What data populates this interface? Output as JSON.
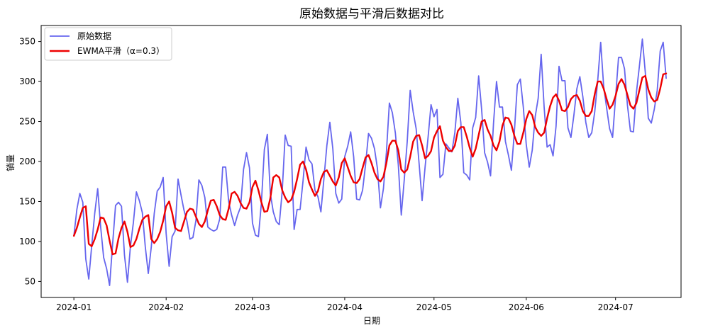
{
  "chart_data": {
    "type": "line",
    "title": "原始数据与平滑后数据对比",
    "xlabel": "日期",
    "ylabel": "销量",
    "xlim": [
      "2023-12-21",
      "2024-07-23"
    ],
    "ylim": [
      30,
      370
    ],
    "xticks": [
      "2024-01",
      "2024-02",
      "2024-03",
      "2024-04",
      "2024-05",
      "2024-06",
      "2024-07"
    ],
    "yticks": [
      50,
      100,
      150,
      200,
      250,
      300,
      350
    ],
    "grid": false,
    "legend": "top-left",
    "x": [
      "2024-01-01",
      "2024-01-02",
      "2024-01-03",
      "2024-01-04",
      "2024-01-05",
      "2024-01-06",
      "2024-01-07",
      "2024-01-08",
      "2024-01-09",
      "2024-01-10",
      "2024-01-11",
      "2024-01-12",
      "2024-01-13",
      "2024-01-14",
      "2024-01-15",
      "2024-01-16",
      "2024-01-17",
      "2024-01-18",
      "2024-01-19",
      "2024-01-20",
      "2024-01-21",
      "2024-01-22",
      "2024-01-23",
      "2024-01-24",
      "2024-01-25",
      "2024-01-26",
      "2024-01-27",
      "2024-01-28",
      "2024-01-29",
      "2024-01-30",
      "2024-01-31",
      "2024-02-01",
      "2024-02-02",
      "2024-02-03",
      "2024-02-04",
      "2024-02-05",
      "2024-02-06",
      "2024-02-07",
      "2024-02-08",
      "2024-02-09",
      "2024-02-10",
      "2024-02-11",
      "2024-02-12",
      "2024-02-13",
      "2024-02-14",
      "2024-02-15",
      "2024-02-16",
      "2024-02-17",
      "2024-02-18",
      "2024-02-19",
      "2024-02-20",
      "2024-02-21",
      "2024-02-22",
      "2024-02-23",
      "2024-02-24",
      "2024-02-25",
      "2024-02-26",
      "2024-02-27",
      "2024-02-28",
      "2024-02-29",
      "2024-03-01",
      "2024-03-02",
      "2024-03-03",
      "2024-03-04",
      "2024-03-05",
      "2024-03-06",
      "2024-03-07",
      "2024-03-08",
      "2024-03-09",
      "2024-03-10",
      "2024-03-11",
      "2024-03-12",
      "2024-03-13",
      "2024-03-14",
      "2024-03-15",
      "2024-03-16",
      "2024-03-17",
      "2024-03-18",
      "2024-03-19",
      "2024-03-20",
      "2024-03-21",
      "2024-03-22",
      "2024-03-23",
      "2024-03-24",
      "2024-03-25",
      "2024-03-26",
      "2024-03-27",
      "2024-03-28",
      "2024-03-29",
      "2024-03-30",
      "2024-03-31",
      "2024-04-01",
      "2024-04-02",
      "2024-04-03",
      "2024-04-04",
      "2024-04-05",
      "2024-04-06",
      "2024-04-07",
      "2024-04-08",
      "2024-04-09",
      "2024-04-10",
      "2024-04-11",
      "2024-04-12",
      "2024-04-13",
      "2024-04-14",
      "2024-04-15",
      "2024-04-16",
      "2024-04-17",
      "2024-04-18",
      "2024-04-19",
      "2024-04-20",
      "2024-04-21",
      "2024-04-22",
      "2024-04-23",
      "2024-04-24",
      "2024-04-25",
      "2024-04-26",
      "2024-04-27",
      "2024-04-28",
      "2024-04-29",
      "2024-04-30",
      "2024-05-01",
      "2024-05-02",
      "2024-05-03",
      "2024-05-04",
      "2024-05-05",
      "2024-05-06",
      "2024-05-07",
      "2024-05-08",
      "2024-05-09",
      "2024-05-10",
      "2024-05-11",
      "2024-05-12",
      "2024-05-13",
      "2024-05-14",
      "2024-05-15",
      "2024-05-16",
      "2024-05-17",
      "2024-05-18",
      "2024-05-19",
      "2024-05-20",
      "2024-05-21",
      "2024-05-22",
      "2024-05-23",
      "2024-05-24",
      "2024-05-25",
      "2024-05-26",
      "2024-05-27",
      "2024-05-28",
      "2024-05-29",
      "2024-05-30",
      "2024-05-31",
      "2024-06-01",
      "2024-06-02",
      "2024-06-03",
      "2024-06-04",
      "2024-06-05",
      "2024-06-06",
      "2024-06-07",
      "2024-06-08",
      "2024-06-09",
      "2024-06-10",
      "2024-06-11",
      "2024-06-12",
      "2024-06-13",
      "2024-06-14",
      "2024-06-15",
      "2024-06-16",
      "2024-06-17",
      "2024-06-18",
      "2024-06-19",
      "2024-06-20",
      "2024-06-21",
      "2024-06-22",
      "2024-06-23",
      "2024-06-24",
      "2024-06-25",
      "2024-06-26",
      "2024-06-27",
      "2024-06-28",
      "2024-06-29",
      "2024-06-30",
      "2024-07-01",
      "2024-07-02",
      "2024-07-03",
      "2024-07-04",
      "2024-07-05",
      "2024-07-06",
      "2024-07-07",
      "2024-07-08",
      "2024-07-09",
      "2024-07-10",
      "2024-07-11",
      "2024-07-12",
      "2024-07-13",
      "2024-07-14",
      "2024-07-15",
      "2024-07-16",
      "2024-07-17",
      "2024-07-18"
    ],
    "series": [
      {
        "name": "原始数据",
        "color": "#6666ee",
        "width": 1.8,
        "values": [
          107,
          140,
          160,
          149,
          78,
          53,
          95,
          135,
          166,
          118,
          80,
          66,
          45,
          96,
          145,
          149,
          144,
          83,
          49,
          94,
          124,
          162,
          151,
          136,
          93,
          60,
          93,
          135,
          163,
          168,
          180,
          110,
          69,
          106,
          113,
          178,
          158,
          139,
          125,
          103,
          105,
          126,
          177,
          170,
          155,
          118,
          115,
          113,
          115,
          128,
          193,
          193,
          150,
          133,
          120,
          133,
          143,
          190,
          211,
          192,
          123,
          108,
          106,
          148,
          215,
          234,
          160,
          137,
          125,
          121,
          163,
          233,
          220,
          219,
          115,
          140,
          140,
          176,
          218,
          202,
          197,
          164,
          156,
          137,
          178,
          220,
          249,
          216,
          160,
          148,
          153,
          206,
          219,
          237,
          206,
          153,
          152,
          164,
          196,
          235,
          229,
          216,
          191,
          142,
          166,
          211,
          273,
          261,
          236,
          196,
          133,
          177,
          225,
          289,
          262,
          241,
          197,
          151,
          193,
          230,
          271,
          256,
          265,
          180,
          184,
          222,
          217,
          212,
          236,
          279,
          249,
          186,
          183,
          177,
          242,
          255,
          307,
          265,
          211,
          199,
          182,
          248,
          300,
          268,
          268,
          225,
          208,
          189,
          237,
          296,
          303,
          268,
          221,
          193,
          214,
          256,
          279,
          334,
          268,
          218,
          221,
          207,
          244,
          319,
          301,
          301,
          242,
          230,
          258,
          291,
          306,
          281,
          249,
          230,
          236,
          262,
          301,
          349,
          294,
          267,
          241,
          230,
          280,
          330,
          330,
          316,
          270,
          238,
          237,
          286,
          319,
          353,
          311,
          254,
          248,
          265,
          289,
          338,
          349,
          304
        ]
      },
      {
        "name": "EWMA平滑（α=0.3）",
        "color": "#ee0000",
        "width": 2.4,
        "values": [
          107,
          117,
          130,
          142,
          144,
          97,
          94,
          103,
          115,
          130,
          129,
          120,
          101,
          84,
          85,
          104,
          117,
          125,
          112,
          93,
          95,
          103,
          116,
          127,
          131,
          133,
          103,
          98,
          103,
          112,
          126,
          144,
          150,
          136,
          117,
          114,
          113,
          125,
          137,
          141,
          140,
          131,
          122,
          118,
          125,
          139,
          151,
          152,
          144,
          133,
          128,
          127,
          141,
          160,
          162,
          157,
          148,
          142,
          141,
          149,
          168,
          176,
          164,
          149,
          137,
          138,
          154,
          180,
          183,
          180,
          164,
          155,
          149,
          152,
          162,
          178,
          196,
          200,
          190,
          174,
          165,
          157,
          163,
          178,
          187,
          189,
          182,
          175,
          170,
          180,
          198,
          204,
          193,
          182,
          174,
          173,
          178,
          192,
          205,
          208,
          198,
          186,
          178,
          175,
          181,
          198,
          220,
          226,
          226,
          214,
          190,
          186,
          190,
          206,
          225,
          232,
          233,
          220,
          204,
          207,
          213,
          230,
          238,
          244,
          226,
          218,
          213,
          213,
          220,
          238,
          243,
          243,
          231,
          217,
          206,
          216,
          233,
          250,
          252,
          240,
          232,
          220,
          214,
          225,
          245,
          255,
          254,
          246,
          232,
          222,
          222,
          236,
          253,
          263,
          258,
          243,
          236,
          232,
          236,
          254,
          269,
          280,
          284,
          276,
          264,
          263,
          268,
          278,
          282,
          283,
          276,
          263,
          257,
          257,
          263,
          284,
          300,
          300,
          291,
          278,
          266,
          271,
          282,
          297,
          303,
          296,
          283,
          270,
          266,
          273,
          289,
          305,
          307,
          290,
          280,
          275,
          277,
          291,
          309,
          310
        ]
      }
    ]
  }
}
